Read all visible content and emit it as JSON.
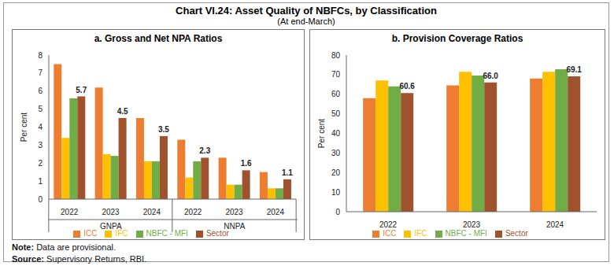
{
  "header": {
    "title": "Chart VI.24: Asset Quality of NBFCs, by Classification",
    "subtitle": "(At end-March)"
  },
  "notes": [
    "Note: Data are provisional.",
    "Source: Supervisory Returns, RBI."
  ],
  "chart_data": [
    {
      "type": "bar",
      "title": "a. Gross and Net NPA Ratios",
      "y_label": "Per cent",
      "categories": [
        "2022",
        "2023",
        "2024",
        "2022",
        "2023",
        "2024"
      ],
      "category_groups": [
        "GNPA",
        "GNPA",
        "GNPA",
        "NNPA",
        "NNPA",
        "NNPA"
      ],
      "ylim": [
        0,
        8
      ],
      "yticks": [
        0,
        1,
        2,
        3,
        4,
        5,
        6,
        7,
        8
      ],
      "grid": false,
      "legend": "bottom",
      "series": [
        {
          "name": "ICC",
          "color": "#ED7D31",
          "values": [
            7.5,
            6.2,
            4.5,
            3.3,
            2.3,
            1.5
          ]
        },
        {
          "name": "IFC",
          "color": "#FFC000",
          "values": [
            3.4,
            2.5,
            2.1,
            1.2,
            0.8,
            0.6
          ]
        },
        {
          "name": "NBFC - MFI",
          "color": "#70AD47",
          "values": [
            5.6,
            2.4,
            2.1,
            2.1,
            0.8,
            0.6
          ]
        },
        {
          "name": "Sector",
          "color": "#A0522D",
          "values": [
            5.7,
            4.5,
            3.5,
            2.3,
            1.6,
            1.1
          ],
          "data_labels": true
        }
      ]
    },
    {
      "type": "bar",
      "title": "b. Provision Coverage Ratios",
      "y_label": "Per cent",
      "categories": [
        "2022",
        "2023",
        "2024"
      ],
      "ylim": [
        0,
        80
      ],
      "yticks": [
        0,
        10,
        20,
        30,
        40,
        50,
        60,
        70,
        80
      ],
      "grid": false,
      "legend": "bottom",
      "series": [
        {
          "name": "ICC",
          "color": "#ED7D31",
          "values": [
            58,
            64.5,
            68
          ]
        },
        {
          "name": "IFC",
          "color": "#FFC000",
          "values": [
            67,
            71.5,
            71.5
          ]
        },
        {
          "name": "NBFC - MFI",
          "color": "#70AD47",
          "values": [
            64,
            69.5,
            72.8
          ]
        },
        {
          "name": "Sector",
          "color": "#A0522D",
          "values": [
            60.6,
            66.0,
            69.1
          ],
          "data_labels": true,
          "value_labels": [
            "60.6",
            "66.0",
            "69.1"
          ]
        }
      ]
    }
  ]
}
